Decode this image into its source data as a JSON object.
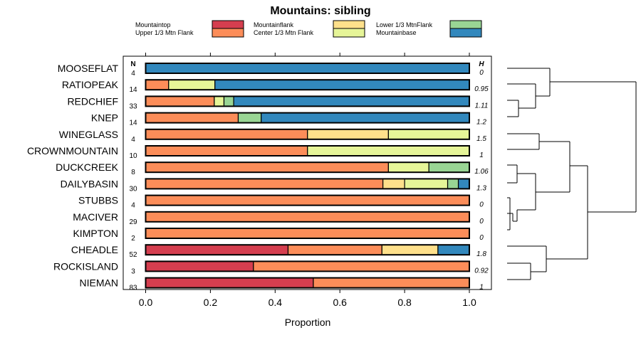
{
  "chart_data": {
    "type": "bar",
    "stacked": true,
    "orientation": "horizontal",
    "title": "Mountains: sibling",
    "xlabel": "Proportion",
    "ylabel": "",
    "xlim": [
      0,
      1
    ],
    "xticks": [
      "0.0",
      "0.2",
      "0.4",
      "0.6",
      "0.8",
      "1.0"
    ],
    "n_header": "N",
    "h_header": "H",
    "legend": [
      {
        "name": "Mountaintop",
        "color": "#d53e4f"
      },
      {
        "name": "Upper 1/3 Mtn Flank",
        "color": "#fc8d59"
      },
      {
        "name": "Mountainflank",
        "color": "#fee08b"
      },
      {
        "name": "Center 1/3 Mtn Flank",
        "color": "#e6f598"
      },
      {
        "name": "Lower 1/3 MtnFlank",
        "color": "#99d594"
      },
      {
        "name": "Mountainbase",
        "color": "#3288bd"
      }
    ],
    "categories": [
      "MOOSEFLAT",
      "RATIOPEAK",
      "REDCHIEF",
      "KNEP",
      "WINEGLASS",
      "CROWNMOUNTAIN",
      "DUCKCREEK",
      "DAILYBASIN",
      "STUBBS",
      "MACIVER",
      "KIMPTON",
      "CHEADLE",
      "ROCKISLAND",
      "NIEMAN"
    ],
    "n": [
      "4",
      "14",
      "33",
      "14",
      "4",
      "10",
      "8",
      "30",
      "4",
      "29",
      "2",
      "52",
      "3",
      "83"
    ],
    "h": [
      "0",
      "0.95",
      "1.11",
      "1.2",
      "1.5",
      "1",
      "1.06",
      "1.3",
      "0",
      "0",
      "0",
      "1.8",
      "0.92",
      "1"
    ],
    "series": [
      {
        "name": "Mountaintop",
        "values": [
          0,
          0,
          0,
          0,
          0,
          0,
          0,
          0,
          0,
          0,
          0,
          0.44,
          0.333,
          0.518
        ]
      },
      {
        "name": "Upper 1/3 Mtn Flank",
        "values": [
          0,
          0.071,
          0.212,
          0.286,
          0.5,
          0.5,
          0.75,
          0.733,
          1,
          1,
          1,
          0.29,
          0.667,
          0.482
        ]
      },
      {
        "name": "Mountainflank",
        "values": [
          0,
          0,
          0,
          0,
          0.25,
          0,
          0,
          0.067,
          0,
          0,
          0,
          0.173,
          0,
          0
        ]
      },
      {
        "name": "Center 1/3 Mtn Flank",
        "values": [
          0,
          0.143,
          0.03,
          0,
          0.25,
          0.5,
          0.125,
          0.133,
          0,
          0,
          0,
          0,
          0,
          0
        ]
      },
      {
        "name": "Lower 1/3 MtnFlank",
        "values": [
          0,
          0,
          0.03,
          0.071,
          0,
          0,
          0.125,
          0.033,
          0,
          0,
          0,
          0,
          0,
          0
        ]
      },
      {
        "name": "Mountainbase",
        "values": [
          1,
          0.786,
          0.727,
          0.643,
          0,
          0,
          0,
          0.033,
          0,
          0,
          0,
          0.096,
          0,
          0
        ]
      }
    ]
  }
}
